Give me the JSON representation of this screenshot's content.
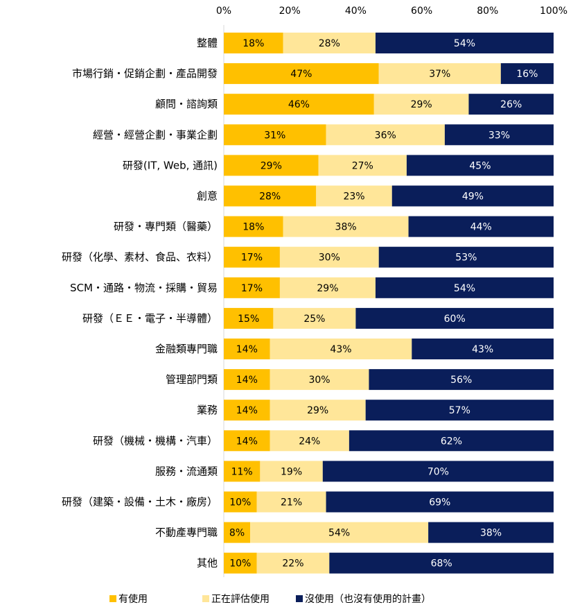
{
  "chart_data": {
    "type": "bar",
    "orientation": "horizontal",
    "stacked": "percent",
    "xlim": [
      0,
      100
    ],
    "ticks": [
      "0%",
      "20%",
      "40%",
      "60%",
      "80%",
      "100%"
    ],
    "tick_position": "top",
    "grid": false,
    "legend_position": "bottom",
    "categories": [
      "整體",
      "市場行銷・促銷企劃・產品開發",
      "顧問・諮詢類",
      "經營・經營企劃・事業企劃",
      "研發(IT, Web, 通訊)",
      "創意",
      "研發・專門類（醫藥）",
      "研發（化學、素材、食品、衣料）",
      "SCM・通路・物流・採購・貿易",
      "研發（ＥＥ・電子・半導體）",
      "金融類專門職",
      "管理部門類",
      "業務",
      "研發（機械・機構・汽車）",
      "服務・流通類",
      "研發（建築・設備・土木・廠房）",
      "不動產專門職",
      "其他"
    ],
    "series": [
      {
        "name": "有使用",
        "color": "#FFC000",
        "text_color": "#000000",
        "values": [
          18,
          47,
          46,
          31,
          29,
          28,
          18,
          17,
          17,
          15,
          14,
          14,
          14,
          14,
          11,
          10,
          8,
          10
        ]
      },
      {
        "name": "正在評估使用",
        "color": "#FFE699",
        "text_color": "#000000",
        "values": [
          28,
          37,
          29,
          36,
          27,
          23,
          38,
          30,
          29,
          25,
          43,
          30,
          29,
          24,
          19,
          21,
          54,
          22
        ]
      },
      {
        "name": "沒使用（也沒有使用的計畫）",
        "color": "#0A1E5A",
        "text_color": "#FFFFFF",
        "values": [
          54,
          16,
          26,
          33,
          45,
          49,
          44,
          53,
          54,
          60,
          43,
          56,
          57,
          62,
          70,
          69,
          38,
          68
        ]
      }
    ]
  }
}
